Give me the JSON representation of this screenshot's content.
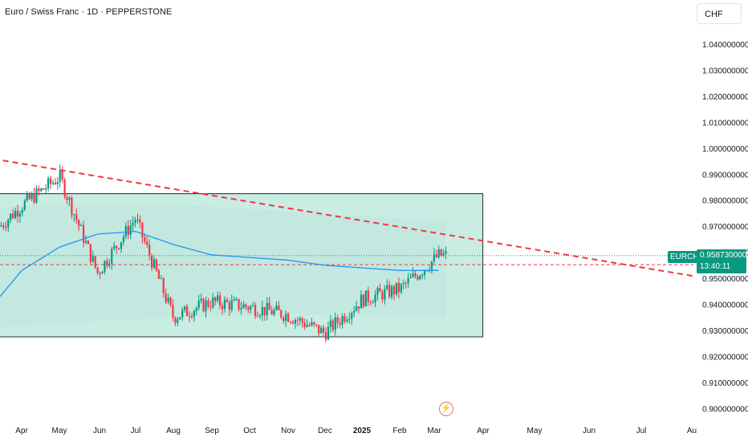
{
  "header": {
    "title": "Euro / Swiss Franc · 1D · PEPPERSTONE",
    "currency": "CHF"
  },
  "price_tag": {
    "symbol": "EURCHF",
    "price": "0.958730000",
    "countdown": "13:40:11"
  },
  "colors": {
    "up": "#089981",
    "down": "#f23645",
    "ma": "#2196f3",
    "box_fill": "#c9ece3",
    "box_border": "#1e2a26",
    "trend": "#f23645",
    "axis_text": "#131722"
  },
  "icons": {
    "event": "flash-icon"
  },
  "chart_data": {
    "type": "candlestick",
    "title": "Euro / Swiss Franc · 1D · PEPPERSTONE",
    "y_axis": {
      "position": "right",
      "range": [
        0.896,
        1.046
      ],
      "ticks": [
        "1.040000000",
        "1.030000000",
        "1.020000000",
        "1.010000000",
        "1.000000000",
        "0.990000000",
        "0.980000000",
        "0.970000000",
        "0.960000000",
        "0.950000000",
        "0.940000000",
        "0.930000000",
        "0.920000000",
        "0.910000000",
        "0.900000000"
      ]
    },
    "x_axis": {
      "ticks": [
        "Apr",
        "May",
        "Jun",
        "Jul",
        "Aug",
        "Sep",
        "Oct",
        "Nov",
        "Dec",
        "2025",
        "Feb",
        "Mar",
        "Apr",
        "May",
        "Jun",
        "Jul",
        "Au"
      ]
    },
    "last_price": 0.95873,
    "dashed_level": 0.9552,
    "range_box": {
      "from": "Mar 2024",
      "to": "Apr 2025",
      "top": 0.9825,
      "bottom": 0.9275
    },
    "trendline": {
      "from": [
        "Mar 2024",
        0.9965
      ],
      "to": [
        "Jul 2025",
        0.9575
      ]
    },
    "series": [
      {
        "name": "candles",
        "monthly_closes": [
          [
            "Mar 2024",
            0.964
          ],
          [
            "Apr 2024",
            0.978
          ],
          [
            "May 2024",
            0.989
          ],
          [
            "Jun 2024",
            0.952
          ],
          [
            "Jul 2024",
            0.973
          ],
          [
            "Aug 2024",
            0.935
          ],
          [
            "Sep 2024",
            0.941
          ],
          [
            "Oct 2024",
            0.939
          ],
          [
            "Nov 2024",
            0.936
          ],
          [
            "Dec 2024",
            0.929
          ],
          [
            "Jan 2025",
            0.942
          ],
          [
            "Feb 2025",
            0.946
          ],
          [
            "Mar 2025",
            0.95873
          ]
        ]
      },
      {
        "name": "moving_average",
        "points": [
          [
            "Mar 2024",
            0.943
          ],
          [
            "Apr 2024",
            0.953
          ],
          [
            "May 2024",
            0.962
          ],
          [
            "Jun 2024",
            0.967
          ],
          [
            "Jul 2024",
            0.968
          ],
          [
            "Aug 2024",
            0.963
          ],
          [
            "Sep 2024",
            0.959
          ],
          [
            "Oct 2024",
            0.958
          ],
          [
            "Nov 2024",
            0.957
          ],
          [
            "Dec 2024",
            0.955
          ],
          [
            "Jan 2025",
            0.954
          ],
          [
            "Feb 2025",
            0.953
          ],
          [
            "Mar 2025",
            0.953
          ]
        ]
      }
    ]
  }
}
